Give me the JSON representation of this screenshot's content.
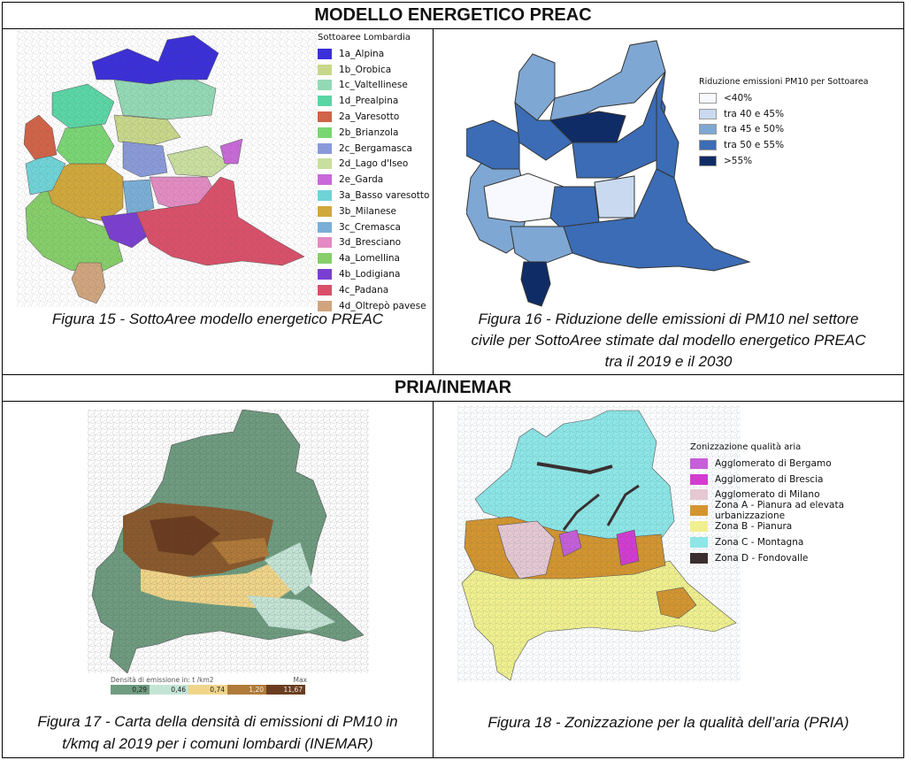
{
  "sections": {
    "top_title": "MODELLO ENERGETICO PREAC",
    "bottom_title": "PRIA/INEMAR"
  },
  "fig15": {
    "caption": "Figura 15 - SottoAree modello energetico PREAC",
    "legend_title": "Sottoaree Lombardia",
    "items": [
      {
        "label": "1a_Alpina",
        "color": "#3b2fd8"
      },
      {
        "label": "1b_Orobica",
        "color": "#c8d78a"
      },
      {
        "label": "1c_Valtellinese",
        "color": "#93d9b5"
      },
      {
        "label": "1d_Prealpina",
        "color": "#5ad6a5"
      },
      {
        "label": "2a_Varesotto",
        "color": "#d06348"
      },
      {
        "label": "2b_Brianzola",
        "color": "#7ad673"
      },
      {
        "label": "2c_Bergamasca",
        "color": "#8a9ad9"
      },
      {
        "label": "2d_Lago d'Iseo",
        "color": "#c9df9f"
      },
      {
        "label": "2e_Garda",
        "color": "#c86ad8"
      },
      {
        "label": "3a_Basso varesotto",
        "color": "#6fd3d8"
      },
      {
        "label": "3b_Milanese",
        "color": "#d0a83c"
      },
      {
        "label": "3c_Cremasca",
        "color": "#7aaed6"
      },
      {
        "label": "3d_Bresciano",
        "color": "#e38bc2"
      },
      {
        "label": "4a_Lomellina",
        "color": "#86ce6a"
      },
      {
        "label": "4b_Lodigiana",
        "color": "#7a3fd0"
      },
      {
        "label": "4c_Padana",
        "color": "#d9506a"
      },
      {
        "label": "4d_Oltrepò pavese",
        "color": "#d0a57e"
      }
    ]
  },
  "fig16": {
    "caption_lines": [
      "Figura 16 - Riduzione delle emissioni di PM10 nel settore",
      "civile per SottoAree stimate dal modello energetico PREAC",
      "tra il 2019 e il 2030"
    ],
    "legend_title": "Riduzione emissioni PM10 per Sottoarea",
    "items": [
      {
        "label": "<40%",
        "color": "#f7f9ff"
      },
      {
        "label": "tra 40 e 45%",
        "color": "#c9daf0"
      },
      {
        "label": "tra 45 e 50%",
        "color": "#7ea7d3"
      },
      {
        "label": "tra 50 e 55%",
        "color": "#3b6cb5"
      },
      {
        "label": ">55%",
        "color": "#0f2c66"
      }
    ]
  },
  "fig17": {
    "caption_lines": [
      "Figura 17 - Carta della densità di emissioni di PM10 in",
      "t/kmq al 2019 per i comuni lombardi (INEMAR)"
    ],
    "scale_title": "Densità di emissione in: t /km2",
    "scale_max": "Max",
    "scale": [
      {
        "label": "0,29",
        "color": "#6f9c80"
      },
      {
        "label": "0,46",
        "color": "#c4e4d6"
      },
      {
        "label": "0,74",
        "color": "#f0d58a"
      },
      {
        "label": "1,20",
        "color": "#b07a3a"
      },
      {
        "label": "11,67",
        "color": "#6b3d20"
      }
    ]
  },
  "fig18": {
    "caption": "Figura 18 - Zonizzazione per la qualità dell’aria (PRIA)",
    "legend_title": "Zonizzazione qualità aria",
    "items": [
      {
        "label": "Agglomerato di Bergamo",
        "color": "#c65fd9"
      },
      {
        "label": "Agglomerato di Brescia",
        "color": "#d43cd0"
      },
      {
        "label": "Agglomerato di Milano",
        "color": "#e6c8d2"
      },
      {
        "label": "Zona A - Pianura ad elevata urbanizzazione",
        "color": "#d4952f"
      },
      {
        "label": "Zona B - Pianura",
        "color": "#f1f08e"
      },
      {
        "label": "Zona C - Montagna",
        "color": "#8ee6e6"
      },
      {
        "label": "Zona D - Fondovalle",
        "color": "#3a2e2e"
      }
    ]
  }
}
